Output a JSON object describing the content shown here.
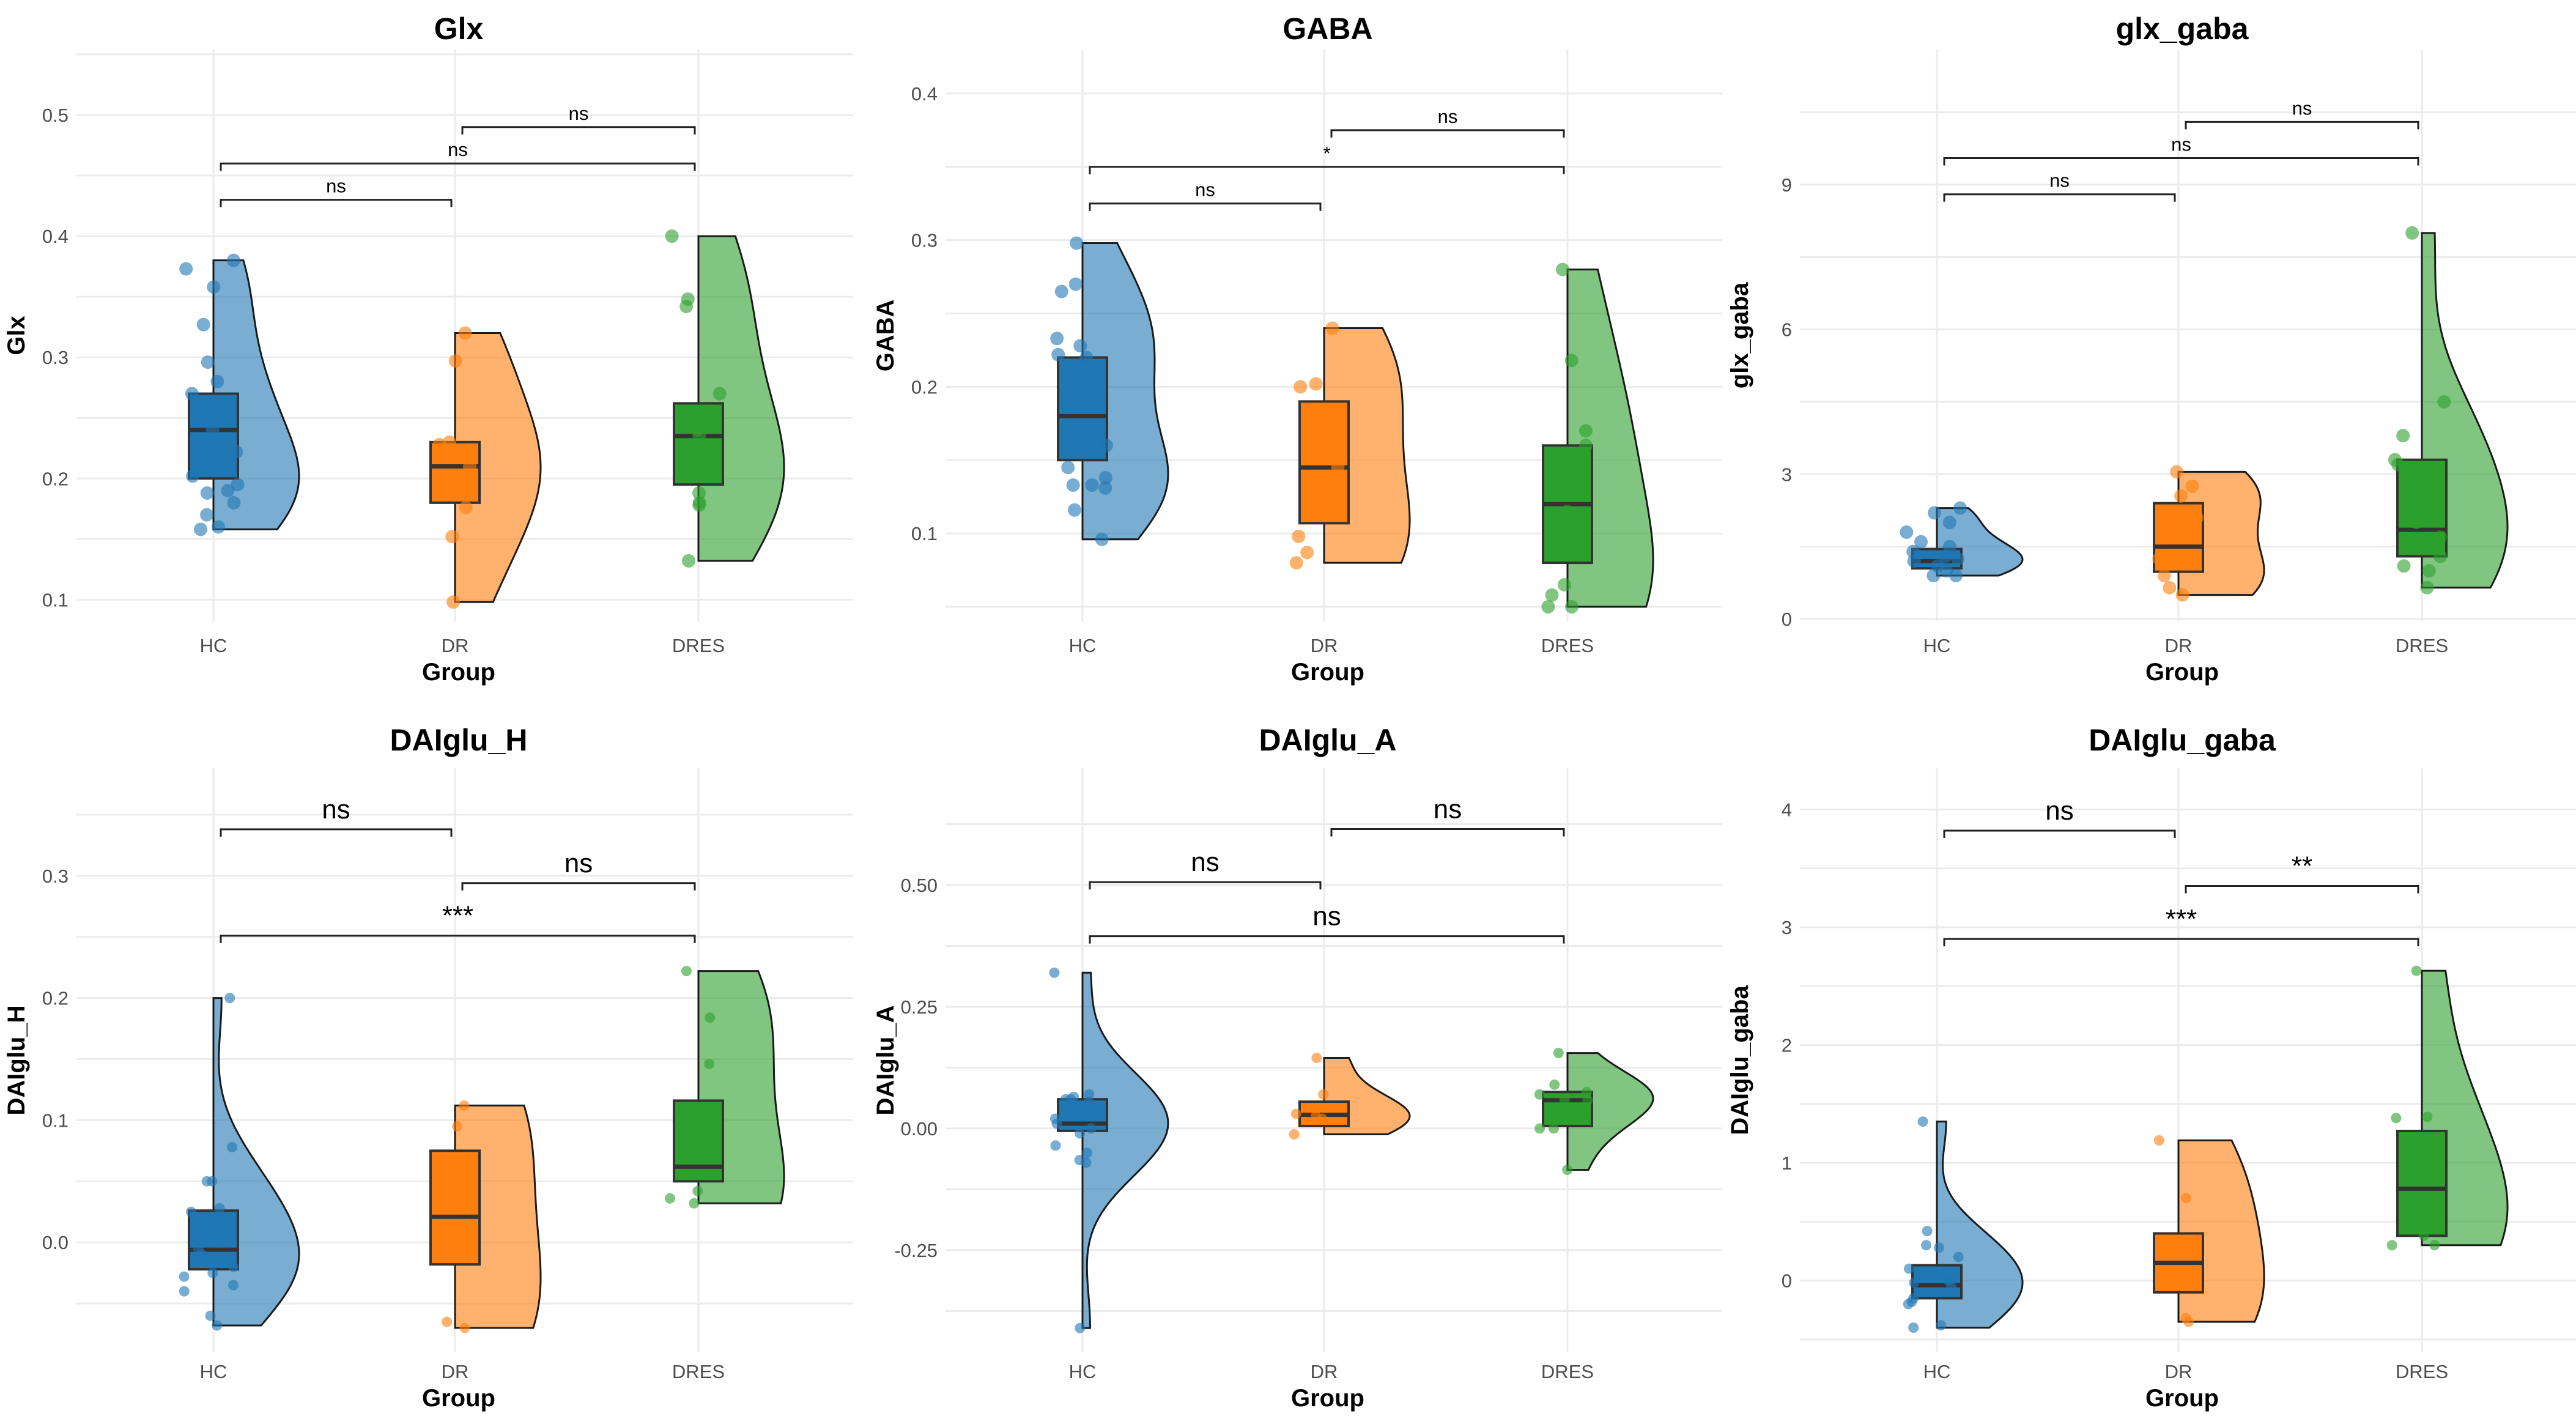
{
  "colors": {
    "HC": "#1f77b4",
    "DR": "#ff7f0e",
    "DRES": "#2ca02c"
  },
  "chart_data": [
    {
      "type": "raincloud",
      "title": "Glx",
      "xlabel": "Group",
      "ylabel": "Glx",
      "categories": [
        "HC",
        "DR",
        "DRES"
      ],
      "ylim": [
        0.082,
        0.554
      ],
      "yticks": [
        0.1,
        0.2,
        0.3,
        0.4,
        0.5
      ],
      "ytick_labels": [
        "0.1",
        "0.2",
        "0.3",
        "0.4",
        "0.5"
      ],
      "groups": [
        {
          "name": "HC",
          "points": [
            0.38,
            0.373,
            0.358,
            0.327,
            0.296,
            0.28,
            0.27,
            0.255,
            0.24,
            0.222,
            0.217,
            0.202,
            0.195,
            0.19,
            0.188,
            0.18,
            0.17,
            0.16,
            0.158
          ],
          "box": {
            "q1": 0.2,
            "median": 0.24,
            "q3": 0.27
          }
        },
        {
          "name": "DR",
          "points": [
            0.32,
            0.297,
            0.23,
            0.228,
            0.21,
            0.176,
            0.152,
            0.098
          ],
          "box": {
            "q1": 0.18,
            "median": 0.21,
            "q3": 0.23
          }
        },
        {
          "name": "DRES",
          "points": [
            0.4,
            0.348,
            0.342,
            0.27,
            0.24,
            0.235,
            0.188,
            0.18,
            0.178,
            0.132
          ],
          "box": {
            "q1": 0.195,
            "median": 0.235,
            "q3": 0.262
          }
        }
      ],
      "comparisons": [
        {
          "from": "HC",
          "to": "DR",
          "y": 0.43,
          "label": "ns"
        },
        {
          "from": "HC",
          "to": "DRES",
          "y": 0.46,
          "label": "ns"
        },
        {
          "from": "DR",
          "to": "DRES",
          "y": 0.49,
          "label": "ns"
        }
      ]
    },
    {
      "type": "raincloud",
      "title": "GABA",
      "xlabel": "Group",
      "ylabel": "GABA",
      "categories": [
        "HC",
        "DR",
        "DRES"
      ],
      "ylim": [
        0.04,
        0.43
      ],
      "yticks": [
        0.1,
        0.2,
        0.3,
        0.4
      ],
      "ytick_labels": [
        "0.1",
        "0.2",
        "0.3",
        "0.4"
      ],
      "groups": [
        {
          "name": "HC",
          "points": [
            0.298,
            0.27,
            0.265,
            0.233,
            0.228,
            0.222,
            0.22,
            0.197,
            0.16,
            0.145,
            0.138,
            0.133,
            0.133,
            0.131,
            0.116,
            0.096
          ],
          "box": {
            "q1": 0.15,
            "median": 0.18,
            "q3": 0.22
          }
        },
        {
          "name": "DR",
          "points": [
            0.24,
            0.202,
            0.2,
            0.145,
            0.098,
            0.087,
            0.08
          ],
          "box": {
            "q1": 0.107,
            "median": 0.145,
            "q3": 0.19
          }
        },
        {
          "name": "DRES",
          "points": [
            0.28,
            0.218,
            0.17,
            0.16,
            0.115,
            0.065,
            0.058,
            0.05,
            0.05
          ],
          "box": {
            "q1": 0.08,
            "median": 0.12,
            "q3": 0.16
          }
        }
      ],
      "comparisons": [
        {
          "from": "HC",
          "to": "DR",
          "y": 0.325,
          "label": "ns"
        },
        {
          "from": "HC",
          "to": "DRES",
          "y": 0.35,
          "label": "*"
        },
        {
          "from": "DR",
          "to": "DRES",
          "y": 0.375,
          "label": "ns"
        }
      ]
    },
    {
      "type": "raincloud",
      "title": "glx_gaba",
      "xlabel": "Group",
      "ylabel": "glx_gaba",
      "categories": [
        "HC",
        "DR",
        "DRES"
      ],
      "ylim": [
        -0.05,
        11.8
      ],
      "yticks": [
        0,
        3,
        6,
        9
      ],
      "ytick_labels": [
        "0",
        "3",
        "6",
        "9"
      ],
      "groups": [
        {
          "name": "HC",
          "points": [
            2.3,
            2.2,
            2.0,
            1.8,
            1.6,
            1.5,
            1.4,
            1.3,
            1.25,
            1.2,
            1.1,
            1.0,
            0.9,
            0.9
          ],
          "box": {
            "q1": 1.05,
            "median": 1.2,
            "q3": 1.45
          }
        },
        {
          "name": "DR",
          "points": [
            3.05,
            2.75,
            2.55,
            2.1,
            1.25,
            0.9,
            0.65,
            0.5
          ],
          "box": {
            "q1": 0.98,
            "median": 1.5,
            "q3": 2.4
          }
        },
        {
          "name": "DRES",
          "points": [
            8.0,
            4.5,
            3.8,
            3.3,
            3.2,
            2.0,
            1.7,
            1.3,
            1.1,
            1.0,
            0.65
          ],
          "box": {
            "q1": 1.3,
            "median": 1.85,
            "q3": 3.3
          }
        }
      ],
      "comparisons": [
        {
          "from": "HC",
          "to": "DR",
          "y": 8.8,
          "label": "ns"
        },
        {
          "from": "HC",
          "to": "DRES",
          "y": 9.55,
          "label": "ns"
        },
        {
          "from": "DR",
          "to": "DRES",
          "y": 10.3,
          "label": "ns"
        }
      ]
    },
    {
      "type": "raincloud",
      "title": "DAIglu_H",
      "xlabel": "Group",
      "ylabel": "DAIglu_H",
      "categories": [
        "HC",
        "DR",
        "DRES"
      ],
      "ylim": [
        -0.09,
        0.388
      ],
      "yticks": [
        0.0,
        0.1,
        0.2,
        0.3
      ],
      "ytick_labels": [
        "0.0",
        "0.1",
        "0.2",
        "0.3"
      ],
      "groups": [
        {
          "name": "HC",
          "points": [
            0.2,
            0.078,
            0.05,
            0.05,
            0.028,
            0.025,
            0.02,
            0.0,
            -0.005,
            -0.01,
            -0.02,
            -0.025,
            -0.028,
            -0.035,
            -0.04,
            -0.06,
            -0.068
          ],
          "box": {
            "q1": -0.022,
            "median": -0.006,
            "q3": 0.026
          }
        },
        {
          "name": "DR",
          "points": [
            0.112,
            0.095,
            0.005,
            -0.065,
            -0.07
          ],
          "box": {
            "q1": -0.018,
            "median": 0.021,
            "q3": 0.075
          }
        },
        {
          "name": "DRES",
          "points": [
            0.222,
            0.184,
            0.146,
            0.042,
            0.036,
            0.032
          ],
          "box": {
            "q1": 0.05,
            "median": 0.062,
            "q3": 0.116
          }
        }
      ],
      "comparisons": [
        {
          "from": "HC",
          "to": "DR",
          "y": 0.338,
          "label": "ns"
        },
        {
          "from": "DR",
          "to": "DRES",
          "y": 0.294,
          "label": "ns"
        },
        {
          "from": "HC",
          "to": "DRES",
          "y": 0.251,
          "label": "***"
        }
      ]
    },
    {
      "type": "raincloud",
      "title": "DAIglu_A",
      "xlabel": "Group",
      "ylabel": "DAIglu_A",
      "categories": [
        "HC",
        "DR",
        "DRES"
      ],
      "ylim": [
        -0.46,
        0.74
      ],
      "yticks": [
        -0.25,
        0.0,
        0.25,
        0.5
      ],
      "ytick_labels": [
        "-0.25",
        "0.00",
        "0.25",
        "0.50"
      ],
      "groups": [
        {
          "name": "HC",
          "points": [
            0.32,
            0.07,
            0.065,
            0.06,
            0.06,
            0.055,
            0.02,
            0.01,
            0.0,
            -0.01,
            -0.035,
            -0.05,
            -0.065,
            -0.07,
            -0.41
          ],
          "box": {
            "q1": -0.005,
            "median": 0.01,
            "q3": 0.06
          }
        },
        {
          "name": "DR",
          "points": [
            0.145,
            0.07,
            0.03,
            0.025,
            0.02,
            -0.012
          ],
          "box": {
            "q1": 0.005,
            "median": 0.028,
            "q3": 0.055
          }
        },
        {
          "name": "DRES",
          "points": [
            0.155,
            0.09,
            0.075,
            0.07,
            0.06,
            0.058,
            0.0,
            0.0,
            -0.085
          ],
          "box": {
            "q1": 0.005,
            "median": 0.058,
            "q3": 0.075
          }
        }
      ],
      "comparisons": [
        {
          "from": "DR",
          "to": "DRES",
          "y": 0.615,
          "label": "ns"
        },
        {
          "from": "HC",
          "to": "DR",
          "y": 0.506,
          "label": "ns"
        },
        {
          "from": "HC",
          "to": "DRES",
          "y": 0.395,
          "label": "ns"
        }
      ]
    },
    {
      "type": "raincloud",
      "title": "DAIglu_gaba",
      "xlabel": "Group",
      "ylabel": "DAIglu_gaba",
      "categories": [
        "HC",
        "DR",
        "DRES"
      ],
      "ylim": [
        -0.61,
        4.35
      ],
      "yticks": [
        0,
        1,
        2,
        3,
        4
      ],
      "ytick_labels": [
        "0",
        "1",
        "2",
        "3",
        "4"
      ],
      "groups": [
        {
          "name": "HC",
          "points": [
            1.35,
            0.42,
            0.3,
            0.28,
            0.2,
            0.1,
            0.0,
            -0.02,
            -0.05,
            -0.15,
            -0.18,
            -0.2,
            -0.38,
            -0.4
          ],
          "box": {
            "q1": -0.15,
            "median": -0.04,
            "q3": 0.13
          }
        },
        {
          "name": "DR",
          "points": [
            1.19,
            0.7,
            0.25,
            -0.32,
            -0.35
          ],
          "box": {
            "q1": -0.1,
            "median": 0.15,
            "q3": 0.4
          }
        },
        {
          "name": "DRES",
          "points": [
            2.63,
            1.39,
            1.38,
            0.7,
            0.38,
            0.3,
            0.3
          ],
          "box": {
            "q1": 0.38,
            "median": 0.78,
            "q3": 1.27
          }
        }
      ],
      "comparisons": [
        {
          "from": "HC",
          "to": "DR",
          "y": 3.82,
          "label": "ns"
        },
        {
          "from": "DR",
          "to": "DRES",
          "y": 3.35,
          "label": "**"
        },
        {
          "from": "HC",
          "to": "DRES",
          "y": 2.9,
          "label": "***"
        }
      ]
    }
  ]
}
